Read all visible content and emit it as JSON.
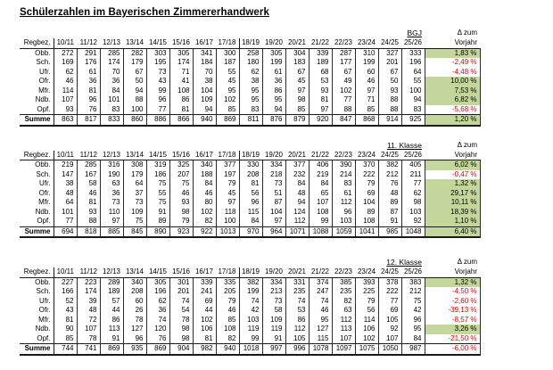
{
  "title": "Schülerzahlen im Bayerischen Zimmererhandwerk",
  "row_header": "Regbez.",
  "sum_label": "Summe",
  "delta_header_line1": "Δ zum",
  "delta_header_line2": "Vorjahr",
  "colors": {
    "positive_bg": "#c3d69b",
    "negative_text": "#e60000",
    "positive_text": "#000000"
  },
  "years": [
    "10/11",
    "11/12",
    "12/13",
    "13/14",
    "14/15",
    "15/16",
    "16/17",
    "17/18",
    "18/19",
    "19/20",
    "20/21",
    "21/22",
    "22/23",
    "23/24",
    "24/25",
    "25/26"
  ],
  "chart_data": {
    "type": "table",
    "title": "Schülerzahlen im Bayerischen Zimmererhandwerk",
    "note": "three sub-tables (BGJ, 11. Klasse, 12. Klasse) of student counts per Bavarian district per school year"
  },
  "tables": [
    {
      "label": "BGJ",
      "rows": [
        {
          "label": "Obb.",
          "values": [
            272,
            291,
            285,
            282,
            303,
            305,
            341,
            300,
            258,
            305,
            304,
            339,
            287,
            310,
            327,
            333
          ],
          "delta": "1,83 %",
          "positive": true
        },
        {
          "label": "Sch.",
          "values": [
            169,
            176,
            174,
            179,
            195,
            174,
            184,
            187,
            180,
            199,
            183,
            189,
            177,
            199,
            201,
            196
          ],
          "delta": "-2,49 %",
          "positive": false
        },
        {
          "label": "Ufr.",
          "values": [
            62,
            61,
            70,
            67,
            73,
            71,
            70,
            55,
            62,
            61,
            67,
            68,
            67,
            60,
            67,
            64
          ],
          "delta": "-4,48 %",
          "positive": false
        },
        {
          "label": "Ofr.",
          "values": [
            46,
            36,
            36,
            50,
            43,
            41,
            38,
            45,
            38,
            36,
            45,
            53,
            49,
            46,
            50,
            55
          ],
          "delta": "10,00 %",
          "positive": true
        },
        {
          "label": "Mfr.",
          "values": [
            114,
            81,
            84,
            94,
            99,
            108,
            104,
            95,
            95,
            86,
            97,
            93,
            102,
            97,
            93,
            100
          ],
          "delta": "7,53 %",
          "positive": true
        },
        {
          "label": "Ndb.",
          "values": [
            107,
            96,
            101,
            88,
            96,
            86,
            109,
            102,
            95,
            95,
            98,
            81,
            77,
            71,
            88,
            94
          ],
          "delta": "6,82 %",
          "positive": true
        },
        {
          "label": "Opf.",
          "values": [
            93,
            76,
            83,
            100,
            77,
            81,
            94,
            85,
            83,
            94,
            85,
            97,
            88,
            85,
            88,
            83
          ],
          "delta": "-5,68 %",
          "positive": false
        }
      ],
      "sum": {
        "values": [
          863,
          817,
          833,
          860,
          886,
          866,
          940,
          869,
          811,
          876,
          879,
          920,
          847,
          868,
          914,
          925
        ],
        "delta": "1,20 %",
        "positive": true
      }
    },
    {
      "label": "11. Klasse",
      "rows": [
        {
          "label": "Obb.",
          "values": [
            219,
            285,
            316,
            308,
            319,
            325,
            340,
            377,
            330,
            334,
            377,
            406,
            390,
            370,
            382,
            405
          ],
          "delta": "6,02 %",
          "positive": true
        },
        {
          "label": "Sch.",
          "values": [
            147,
            167,
            190,
            179,
            186,
            207,
            188,
            197,
            208,
            218,
            232,
            219,
            214,
            222,
            212,
            211
          ],
          "delta": "-0,47 %",
          "positive": false
        },
        {
          "label": "Ufr.",
          "values": [
            38,
            58,
            63,
            64,
            75,
            75,
            84,
            79,
            81,
            73,
            84,
            84,
            83,
            79,
            76,
            77
          ],
          "delta": "1,32 %",
          "positive": true
        },
        {
          "label": "Ofr.",
          "values": [
            48,
            46,
            36,
            37,
            55,
            46,
            46,
            45,
            56,
            51,
            48,
            65,
            61,
            69,
            48,
            62
          ],
          "delta": "29,17 %",
          "positive": true
        },
        {
          "label": "Mfr.",
          "values": [
            64,
            81,
            73,
            73,
            75,
            93,
            80,
            97,
            96,
            87,
            94,
            107,
            112,
            104,
            89,
            98
          ],
          "delta": "10,11 %",
          "positive": true
        },
        {
          "label": "Ndb.",
          "values": [
            101,
            93,
            110,
            109,
            91,
            98,
            102,
            118,
            115,
            104,
            124,
            108,
            96,
            89,
            87,
            103
          ],
          "delta": "18,39 %",
          "positive": true
        },
        {
          "label": "Opf.",
          "values": [
            77,
            88,
            97,
            75,
            89,
            79,
            82,
            100,
            84,
            97,
            112,
            99,
            103,
            108,
            91,
            92
          ],
          "delta": "1,10 %",
          "positive": true
        }
      ],
      "sum": {
        "values": [
          694,
          818,
          885,
          845,
          890,
          923,
          922,
          1013,
          970,
          964,
          1071,
          1088,
          1059,
          1041,
          985,
          1048
        ],
        "delta": "6,40 %",
        "positive": true
      }
    },
    {
      "label": "12. Klasse",
      "rows": [
        {
          "label": "Obb.",
          "values": [
            227,
            223,
            289,
            340,
            305,
            301,
            339,
            335,
            382,
            334,
            331,
            374,
            385,
            393,
            378,
            383
          ],
          "delta": "1,32 %",
          "positive": true
        },
        {
          "label": "Sch.",
          "values": [
            166,
            174,
            189,
            208,
            196,
            201,
            241,
            205,
            199,
            213,
            235,
            247,
            235,
            225,
            222,
            212
          ],
          "delta": "-4,50 %",
          "positive": false
        },
        {
          "label": "Ufr.",
          "values": [
            52,
            39,
            57,
            60,
            62,
            74,
            69,
            79,
            74,
            73,
            74,
            74,
            82,
            79,
            77,
            75
          ],
          "delta": "-2,60 %",
          "positive": false
        },
        {
          "label": "Ofr.",
          "values": [
            43,
            48,
            44,
            26,
            36,
            54,
            44,
            46,
            42,
            58,
            53,
            46,
            63,
            56,
            69,
            42
          ],
          "delta": "-39,13 %",
          "positive": false
        },
        {
          "label": "Mfr.",
          "values": [
            81,
            72,
            86,
            78,
            74,
            78,
            102,
            85,
            103,
            109,
            86,
            95,
            112,
            114,
            105,
            96
          ],
          "delta": "-8,57 %",
          "positive": false
        },
        {
          "label": "Ndb.",
          "values": [
            90,
            107,
            113,
            127,
            120,
            98,
            106,
            108,
            119,
            119,
            112,
            127,
            113,
            106,
            92,
            95
          ],
          "delta": "3,26 %",
          "positive": true
        },
        {
          "label": "Opf.",
          "values": [
            85,
            78,
            91,
            96,
            76,
            98,
            81,
            82,
            99,
            91,
            105,
            115,
            107,
            102,
            107,
            84
          ],
          "delta": "-21,50 %",
          "positive": false
        }
      ],
      "sum": {
        "values": [
          744,
          741,
          869,
          935,
          869,
          904,
          982,
          940,
          1018,
          997,
          996,
          1078,
          1097,
          1075,
          1050,
          987
        ],
        "delta": "-6,00 %",
        "positive": false
      }
    }
  ]
}
